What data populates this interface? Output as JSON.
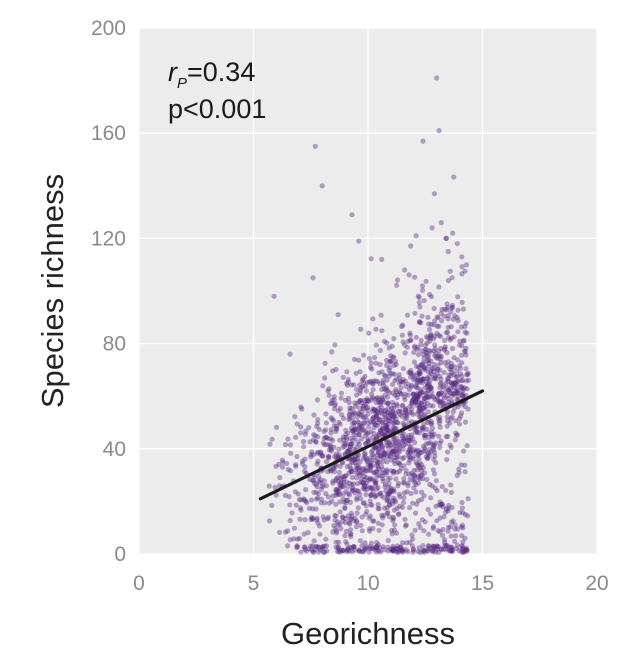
{
  "chart_data": {
    "type": "scatter",
    "xlabel": "Georichness",
    "ylabel": "Species richness",
    "xlim": [
      0,
      20
    ],
    "ylim": [
      0,
      200
    ],
    "xticks": [
      "0",
      "5",
      "10",
      "15",
      "20"
    ],
    "yticks": [
      "0",
      "40",
      "80",
      "120",
      "160",
      "200"
    ],
    "grid": true,
    "annotation": {
      "r_symbol": "r",
      "r_subscript": "P",
      "r_text": "=0.34",
      "p_text": "p<0.001"
    },
    "fit_line": {
      "x": [
        5.3,
        15.0
      ],
      "y": [
        21,
        62
      ]
    },
    "colors": {
      "points": "#5b2a86",
      "fit": "#1a1a1a",
      "panel": "#ececec",
      "grid": "#ffffff"
    },
    "points": {
      "outliers": [
        [
          13.0,
          181
        ],
        [
          13.1,
          161
        ],
        [
          12.4,
          157
        ],
        [
          7.7,
          155
        ],
        [
          8.0,
          140
        ],
        [
          12.9,
          137
        ],
        [
          9.3,
          129
        ],
        [
          9.6,
          119
        ],
        [
          7.6,
          105
        ],
        [
          5.9,
          98
        ],
        [
          8.7,
          91
        ],
        [
          6.6,
          76
        ],
        [
          14.3,
          110
        ],
        [
          14.1,
          113
        ],
        [
          13.7,
          122
        ],
        [
          13.2,
          126
        ],
        [
          13.5,
          115
        ],
        [
          13.4,
          120
        ],
        [
          12.8,
          124
        ],
        [
          12.1,
          121
        ],
        [
          11.6,
          108
        ],
        [
          13.9,
          118
        ],
        [
          10.6,
          112
        ]
      ]
    }
  }
}
